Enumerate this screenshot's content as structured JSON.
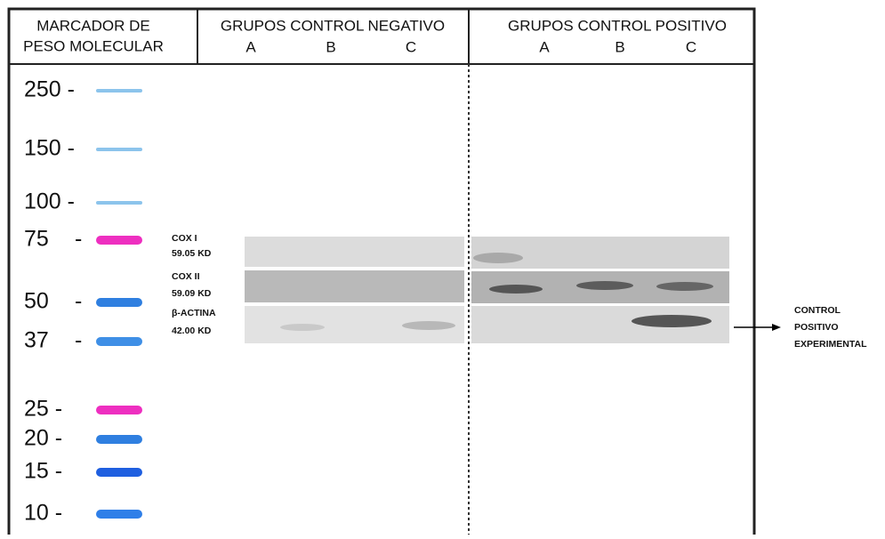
{
  "header": {
    "marker": [
      "MARCADOR DE",
      "PESO MOLECULAR"
    ],
    "negative": {
      "title": "GRUPOS CONTROL NEGATIVO",
      "lanes": [
        "A",
        "B",
        "C"
      ]
    },
    "positive": {
      "title": "GRUPOS CONTROL POSITIVO",
      "lanes": [
        "A",
        "B",
        "C"
      ]
    }
  },
  "ladder": [
    {
      "label": "250 -",
      "color": "#8cc4ec"
    },
    {
      "label": "150 -",
      "color": "#8cc4ec"
    },
    {
      "label": "100 -",
      "color": "#8cc4ec"
    },
    {
      "label": "75",
      "color": "#ee2fc0"
    },
    {
      "label": "50",
      "color": "#2f7fe0"
    },
    {
      "label": "37",
      "color": "#3f8fe6"
    },
    {
      "label": "25 -",
      "color": "#ee2fc0"
    },
    {
      "label": "20 -",
      "color": "#2f7fe0"
    },
    {
      "label": "15 -",
      "color": "#1f5fe0"
    },
    {
      "label": "10 -",
      "color": "#2f7fe8"
    }
  ],
  "blots": [
    {
      "name": "COX I",
      "weight": "59.05 KD"
    },
    {
      "name": "COX II",
      "weight": "59.09 KD"
    },
    {
      "name": "β-ACTINA",
      "weight": "42.00 KD"
    }
  ],
  "annotation": [
    "CONTROL",
    "POSITIVO",
    "EXPERIMENTAL"
  ]
}
